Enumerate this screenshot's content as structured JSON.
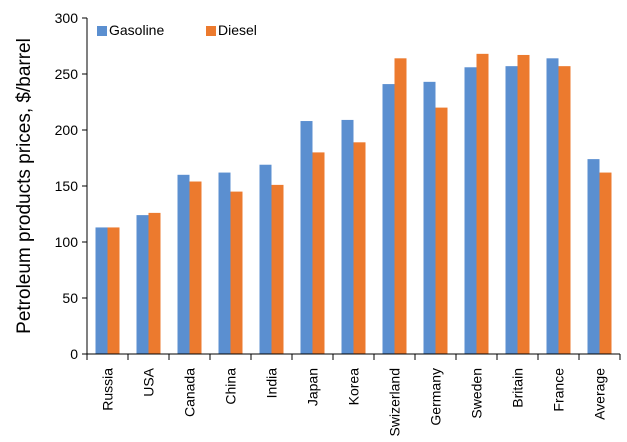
{
  "chart_data": {
    "type": "bar",
    "title": "",
    "xlabel": "",
    "ylabel": "Petroleum products prices, $/barrel",
    "ylim": [
      0,
      300
    ],
    "yticks": [
      0,
      50,
      100,
      150,
      200,
      250,
      300
    ],
    "grid": false,
    "legend_position": "top-left",
    "categories": [
      "Russia",
      "USA",
      "Canada",
      "China",
      "India",
      "Japan",
      "Korea",
      "Swizerland",
      "Germany",
      "Sweden",
      "Britain",
      "France",
      "Average"
    ],
    "series": [
      {
        "name": "Gasoline",
        "color": "#5B8FD0",
        "values": [
          113,
          124,
          160,
          162,
          169,
          208,
          209,
          241,
          243,
          256,
          257,
          264,
          174
        ]
      },
      {
        "name": "Diesel",
        "color": "#EC7A2E",
        "values": [
          113,
          126,
          154,
          145,
          151,
          180,
          189,
          264,
          220,
          268,
          267,
          257,
          162
        ]
      }
    ]
  }
}
